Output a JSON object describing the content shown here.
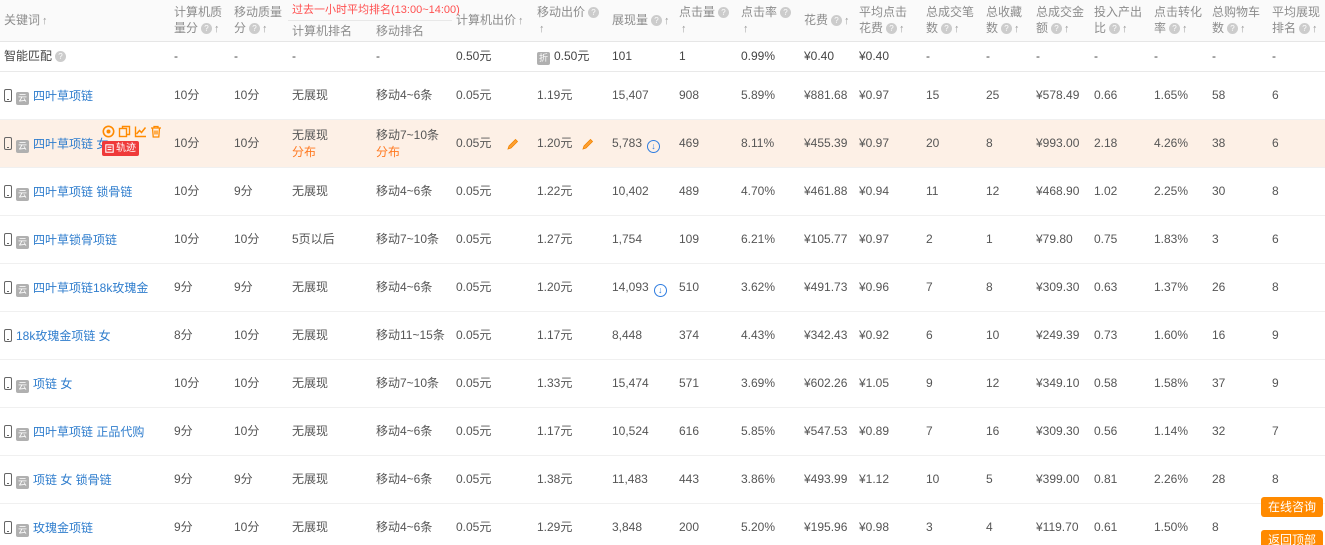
{
  "icons": {
    "badge_char": "云",
    "discount_char": "折",
    "help_char": "?",
    "sort_arrow": "↑",
    "trend_arrow": "↓"
  },
  "table": {
    "headers": {
      "keyword": "关键词",
      "pc_score": "计算机质量分",
      "mobile_score": "移动质量分",
      "rank_group": "过去一小时平均排名(13:00~14:00)",
      "pc_rank": "计算机排名",
      "mobile_rank": "移动排名",
      "pc_bid": "计算机出价",
      "mobile_bid": "移动出价",
      "impressions": "展现量",
      "clicks": "点击量",
      "ctr": "点击率",
      "cost": "花费",
      "avg_cpc": "平均点击花费",
      "orders": "总成交笔数",
      "favorites": "总收藏数",
      "revenue": "总成交金额",
      "roi": "投入产出比",
      "cvr": "点击转化率",
      "carts": "总购物车数",
      "avg_rank": "平均展现排名"
    },
    "smart_row": {
      "label": "智能匹配",
      "pc_score": "-",
      "mobile_score": "-",
      "pc_rank": "-",
      "mobile_rank": "-",
      "pc_bid": "0.50元",
      "mobile_bid": "0.50元",
      "impressions": "101",
      "clicks": "1",
      "ctr": "0.99%",
      "cost": "¥0.40",
      "avg_cpc": "¥0.40",
      "orders": "-",
      "favorites": "-",
      "revenue": "-",
      "roi": "-",
      "cvr": "-",
      "carts": "-",
      "avg_rank": "-"
    },
    "hover_actions": {
      "trail_badge": "轨迹"
    },
    "rows": [
      {
        "keyword": "四叶草项链",
        "badge": true,
        "pc_score": "10分",
        "mobile_score": "10分",
        "pc_rank": "无展现",
        "mobile_rank": "移动4~6条",
        "pc_bid": "0.05元",
        "mobile_bid": "1.19元",
        "impressions": "15,407",
        "clicks": "908",
        "ctr": "5.89%",
        "cost": "¥881.68",
        "avg_cpc": "¥0.97",
        "orders": "15",
        "favorites": "25",
        "revenue": "¥578.49",
        "roi": "0.66",
        "cvr": "1.65%",
        "carts": "58",
        "avg_rank": "6"
      },
      {
        "keyword": "四叶草项链 女",
        "badge": true,
        "hover": true,
        "pc_score": "10分",
        "mobile_score": "10分",
        "pc_rank": "无展现",
        "pc_rank_link": "分布",
        "mobile_rank": "移动7~10条",
        "mobile_rank_link": "分布",
        "pc_bid": "0.05元",
        "pc_bid_edit": true,
        "mobile_bid": "1.20元",
        "mobile_bid_edit": true,
        "impressions": "5,783",
        "trend_icon": true,
        "clicks": "469",
        "ctr": "8.11%",
        "cost": "¥455.39",
        "avg_cpc": "¥0.97",
        "orders": "20",
        "favorites": "8",
        "revenue": "¥993.00",
        "roi": "2.18",
        "cvr": "4.26%",
        "carts": "38",
        "avg_rank": "6"
      },
      {
        "keyword": "四叶草项链 锁骨链",
        "badge": true,
        "pc_score": "10分",
        "mobile_score": "9分",
        "pc_rank": "无展现",
        "mobile_rank": "移动4~6条",
        "pc_bid": "0.05元",
        "mobile_bid": "1.22元",
        "impressions": "10,402",
        "clicks": "489",
        "ctr": "4.70%",
        "cost": "¥461.88",
        "avg_cpc": "¥0.94",
        "orders": "11",
        "favorites": "12",
        "revenue": "¥468.90",
        "roi": "1.02",
        "cvr": "2.25%",
        "carts": "30",
        "avg_rank": "8"
      },
      {
        "keyword": "四叶草锁骨项链",
        "badge": true,
        "pc_score": "10分",
        "mobile_score": "10分",
        "pc_rank": "5页以后",
        "mobile_rank": "移动7~10条",
        "pc_bid": "0.05元",
        "mobile_bid": "1.27元",
        "impressions": "1,754",
        "clicks": "109",
        "ctr": "6.21%",
        "cost": "¥105.77",
        "avg_cpc": "¥0.97",
        "orders": "2",
        "favorites": "1",
        "revenue": "¥79.80",
        "roi": "0.75",
        "cvr": "1.83%",
        "carts": "3",
        "avg_rank": "6"
      },
      {
        "keyword": "四叶草项链18k玫瑰金",
        "badge": true,
        "pc_score": "9分",
        "mobile_score": "9分",
        "pc_rank": "无展现",
        "mobile_rank": "移动4~6条",
        "pc_bid": "0.05元",
        "mobile_bid": "1.20元",
        "impressions": "14,093",
        "trend_icon": true,
        "clicks": "510",
        "ctr": "3.62%",
        "cost": "¥491.73",
        "avg_cpc": "¥0.96",
        "orders": "7",
        "favorites": "8",
        "revenue": "¥309.30",
        "roi": "0.63",
        "cvr": "1.37%",
        "carts": "26",
        "avg_rank": "8"
      },
      {
        "keyword": "18k玫瑰金项链 女",
        "badge": false,
        "pc_score": "8分",
        "mobile_score": "10分",
        "pc_rank": "无展现",
        "mobile_rank": "移动11~15条",
        "pc_bid": "0.05元",
        "mobile_bid": "1.17元",
        "impressions": "8,448",
        "clicks": "374",
        "ctr": "4.43%",
        "cost": "¥342.43",
        "avg_cpc": "¥0.92",
        "orders": "6",
        "favorites": "10",
        "revenue": "¥249.39",
        "roi": "0.73",
        "cvr": "1.60%",
        "carts": "16",
        "avg_rank": "9"
      },
      {
        "keyword": "项链 女",
        "badge": true,
        "pc_score": "10分",
        "mobile_score": "10分",
        "pc_rank": "无展现",
        "mobile_rank": "移动7~10条",
        "pc_bid": "0.05元",
        "mobile_bid": "1.33元",
        "impressions": "15,474",
        "clicks": "571",
        "ctr": "3.69%",
        "cost": "¥602.26",
        "avg_cpc": "¥1.05",
        "orders": "9",
        "favorites": "12",
        "revenue": "¥349.10",
        "roi": "0.58",
        "cvr": "1.58%",
        "carts": "37",
        "avg_rank": "9"
      },
      {
        "keyword": "四叶草项链 正品代购",
        "badge": true,
        "pc_score": "9分",
        "mobile_score": "10分",
        "pc_rank": "无展现",
        "mobile_rank": "移动4~6条",
        "pc_bid": "0.05元",
        "mobile_bid": "1.17元",
        "impressions": "10,524",
        "clicks": "616",
        "ctr": "5.85%",
        "cost": "¥547.53",
        "avg_cpc": "¥0.89",
        "orders": "7",
        "favorites": "16",
        "revenue": "¥309.30",
        "roi": "0.56",
        "cvr": "1.14%",
        "carts": "32",
        "avg_rank": "7"
      },
      {
        "keyword": "项链 女 锁骨链",
        "badge": true,
        "pc_score": "9分",
        "mobile_score": "9分",
        "pc_rank": "无展现",
        "mobile_rank": "移动4~6条",
        "pc_bid": "0.05元",
        "mobile_bid": "1.38元",
        "impressions": "11,483",
        "clicks": "443",
        "ctr": "3.86%",
        "cost": "¥493.99",
        "avg_cpc": "¥1.12",
        "orders": "10",
        "favorites": "5",
        "revenue": "¥399.00",
        "roi": "0.81",
        "cvr": "2.26%",
        "carts": "28",
        "avg_rank": "8"
      },
      {
        "keyword": "玫瑰金项链",
        "badge": true,
        "pc_score": "9分",
        "mobile_score": "10分",
        "pc_rank": "无展现",
        "mobile_rank": "移动4~6条",
        "pc_bid": "0.05元",
        "mobile_bid": "1.29元",
        "impressions": "3,848",
        "clicks": "200",
        "ctr": "5.20%",
        "cost": "¥195.96",
        "avg_cpc": "¥0.98",
        "orders": "3",
        "favorites": "4",
        "revenue": "¥119.70",
        "roi": "0.61",
        "cvr": "1.50%",
        "carts": "8",
        "avg_rank": ""
      }
    ]
  },
  "floating_buttons": {
    "consult": "在线咨询",
    "back_to_top": "返回顶部"
  }
}
